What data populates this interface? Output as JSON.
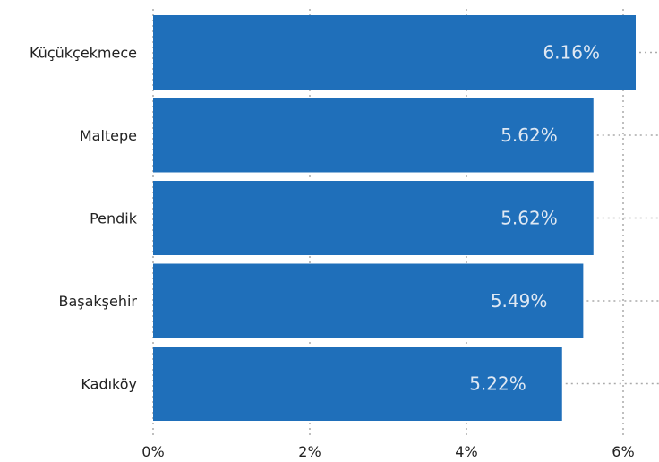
{
  "chart_data": {
    "type": "bar",
    "orientation": "horizontal",
    "categories": [
      "Küçükçekmece",
      "Maltepe",
      "Pendik",
      "Başakşehir",
      "Kadıköy"
    ],
    "values": [
      6.16,
      5.62,
      5.62,
      5.49,
      5.22
    ],
    "value_labels": [
      "6.16%",
      "5.62%",
      "5.62%",
      "5.49%",
      "5.22%"
    ],
    "xlim": [
      0,
      6
    ],
    "x_ticks": [
      0,
      2,
      4,
      6
    ],
    "x_tick_labels": [
      "0%",
      "2%",
      "4%",
      "6%"
    ],
    "grid": "vertical dotted",
    "bar_color": "#1f6fba",
    "value_label_color": "#dfe8f3",
    "grid_color": "#aaaaaa"
  }
}
